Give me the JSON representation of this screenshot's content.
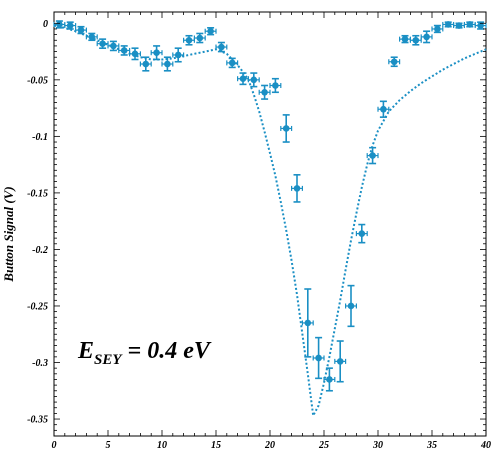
{
  "chart_data": {
    "type": "scatter",
    "ylabel": "Button Signal (V)",
    "xlabel": "",
    "annotation": {
      "main": "E",
      "subscript": "SEY",
      "rest": " = 0.4 eV"
    },
    "xlim": [
      0,
      40
    ],
    "ylim": [
      -0.365,
      0.01
    ],
    "xticks": [
      0,
      5,
      10,
      15,
      20,
      25,
      30,
      35,
      40
    ],
    "yticks": [
      0,
      -0.05,
      -0.1,
      -0.15,
      -0.2,
      -0.25,
      -0.3,
      -0.35
    ],
    "ytick_labels": [
      "0",
      "-0.05",
      "-0.1",
      "-0.15",
      "-0.2",
      "-0.25",
      "-0.3",
      "-0.35"
    ],
    "grid": false,
    "color": "#1a8fc4",
    "series": [
      {
        "kind": "measured",
        "points": [
          {
            "x": 0.5,
            "y": -0.001,
            "xerr": 0.5,
            "yerr": 0.003
          },
          {
            "x": 1.5,
            "y": -0.002,
            "xerr": 0.5,
            "yerr": 0.003
          },
          {
            "x": 2.5,
            "y": -0.006,
            "xerr": 0.5,
            "yerr": 0.003
          },
          {
            "x": 3.5,
            "y": -0.012,
            "xerr": 0.5,
            "yerr": 0.003
          },
          {
            "x": 4.5,
            "y": -0.018,
            "xerr": 0.5,
            "yerr": 0.004
          },
          {
            "x": 5.5,
            "y": -0.02,
            "xerr": 0.5,
            "yerr": 0.004
          },
          {
            "x": 6.5,
            "y": -0.024,
            "xerr": 0.5,
            "yerr": 0.004
          },
          {
            "x": 7.5,
            "y": -0.027,
            "xerr": 0.5,
            "yerr": 0.005
          },
          {
            "x": 8.5,
            "y": -0.036,
            "xerr": 0.5,
            "yerr": 0.006
          },
          {
            "x": 9.5,
            "y": -0.026,
            "xerr": 0.5,
            "yerr": 0.006
          },
          {
            "x": 10.5,
            "y": -0.036,
            "xerr": 0.5,
            "yerr": 0.006
          },
          {
            "x": 11.5,
            "y": -0.028,
            "xerr": 0.5,
            "yerr": 0.006
          },
          {
            "x": 12.5,
            "y": -0.015,
            "xerr": 0.5,
            "yerr": 0.004
          },
          {
            "x": 13.5,
            "y": -0.013,
            "xerr": 0.5,
            "yerr": 0.004
          },
          {
            "x": 14.5,
            "y": -0.007,
            "xerr": 0.5,
            "yerr": 0.003
          },
          {
            "x": 15.5,
            "y": -0.021,
            "xerr": 0.5,
            "yerr": 0.004
          },
          {
            "x": 16.5,
            "y": -0.035,
            "xerr": 0.5,
            "yerr": 0.004
          },
          {
            "x": 17.5,
            "y": -0.049,
            "xerr": 0.5,
            "yerr": 0.005
          },
          {
            "x": 18.5,
            "y": -0.05,
            "xerr": 0.5,
            "yerr": 0.006
          },
          {
            "x": 19.5,
            "y": -0.061,
            "xerr": 0.5,
            "yerr": 0.006
          },
          {
            "x": 20.5,
            "y": -0.055,
            "xerr": 0.5,
            "yerr": 0.006
          },
          {
            "x": 21.5,
            "y": -0.093,
            "xerr": 0.5,
            "yerr": 0.012
          },
          {
            "x": 22.5,
            "y": -0.146,
            "xerr": 0.5,
            "yerr": 0.012
          },
          {
            "x": 23.5,
            "y": -0.265,
            "xerr": 0.5,
            "yerr": 0.03
          },
          {
            "x": 24.5,
            "y": -0.296,
            "xerr": 0.5,
            "yerr": 0.018
          },
          {
            "x": 25.5,
            "y": -0.315,
            "xerr": 0.5,
            "yerr": 0.01
          },
          {
            "x": 26.5,
            "y": -0.299,
            "xerr": 0.5,
            "yerr": 0.018
          },
          {
            "x": 27.5,
            "y": -0.25,
            "xerr": 0.5,
            "yerr": 0.018
          },
          {
            "x": 28.5,
            "y": -0.186,
            "xerr": 0.5,
            "yerr": 0.008
          },
          {
            "x": 29.5,
            "y": -0.117,
            "xerr": 0.5,
            "yerr": 0.007
          },
          {
            "x": 30.5,
            "y": -0.076,
            "xerr": 0.5,
            "yerr": 0.007
          },
          {
            "x": 31.5,
            "y": -0.034,
            "xerr": 0.5,
            "yerr": 0.004
          },
          {
            "x": 32.5,
            "y": -0.014,
            "xerr": 0.5,
            "yerr": 0.003
          },
          {
            "x": 33.5,
            "y": -0.015,
            "xerr": 0.5,
            "yerr": 0.004
          },
          {
            "x": 34.5,
            "y": -0.012,
            "xerr": 0.5,
            "yerr": 0.005
          },
          {
            "x": 35.5,
            "y": -0.005,
            "xerr": 0.5,
            "yerr": 0.003
          },
          {
            "x": 36.5,
            "y": -0.001,
            "xerr": 0.5,
            "yerr": 0.002
          },
          {
            "x": 37.5,
            "y": -0.002,
            "xerr": 0.5,
            "yerr": 0.002
          },
          {
            "x": 38.5,
            "y": -0.001,
            "xerr": 0.5,
            "yerr": 0.002
          },
          {
            "x": 39.5,
            "y": -0.002,
            "xerr": 0.5,
            "yerr": 0.003
          }
        ]
      },
      {
        "kind": "simulated",
        "points": [
          {
            "x": 0,
            "y": -0.002
          },
          {
            "x": 1,
            "y": -0.004
          },
          {
            "x": 2,
            "y": -0.007
          },
          {
            "x": 3,
            "y": -0.011
          },
          {
            "x": 4,
            "y": -0.015
          },
          {
            "x": 5,
            "y": -0.019
          },
          {
            "x": 6,
            "y": -0.023
          },
          {
            "x": 7,
            "y": -0.027
          },
          {
            "x": 8,
            "y": -0.03
          },
          {
            "x": 9,
            "y": -0.032
          },
          {
            "x": 10,
            "y": -0.032
          },
          {
            "x": 11,
            "y": -0.031
          },
          {
            "x": 12,
            "y": -0.029
          },
          {
            "x": 13,
            "y": -0.027
          },
          {
            "x": 14,
            "y": -0.025
          },
          {
            "x": 15,
            "y": -0.023
          },
          {
            "x": 16,
            "y": -0.027
          },
          {
            "x": 17,
            "y": -0.037
          },
          {
            "x": 17.5,
            "y": -0.043
          },
          {
            "x": 18,
            "y": -0.05
          },
          {
            "x": 18.5,
            "y": -0.063
          },
          {
            "x": 19,
            "y": -0.078
          },
          {
            "x": 19.5,
            "y": -0.096
          },
          {
            "x": 20,
            "y": -0.115
          },
          {
            "x": 20.5,
            "y": -0.135
          },
          {
            "x": 21,
            "y": -0.158
          },
          {
            "x": 21.5,
            "y": -0.183
          },
          {
            "x": 22,
            "y": -0.21
          },
          {
            "x": 22.5,
            "y": -0.24
          },
          {
            "x": 23,
            "y": -0.275
          },
          {
            "x": 23.5,
            "y": -0.31
          },
          {
            "x": 24,
            "y": -0.347
          },
          {
            "x": 24.5,
            "y": -0.338
          },
          {
            "x": 25,
            "y": -0.318
          },
          {
            "x": 25.5,
            "y": -0.295
          },
          {
            "x": 26,
            "y": -0.27
          },
          {
            "x": 26.5,
            "y": -0.245
          },
          {
            "x": 27,
            "y": -0.218
          },
          {
            "x": 27.5,
            "y": -0.192
          },
          {
            "x": 28,
            "y": -0.168
          },
          {
            "x": 28.5,
            "y": -0.145
          },
          {
            "x": 29,
            "y": -0.125
          },
          {
            "x": 29.5,
            "y": -0.108
          },
          {
            "x": 30,
            "y": -0.095
          },
          {
            "x": 31,
            "y": -0.078
          },
          {
            "x": 32,
            "y": -0.068
          },
          {
            "x": 33,
            "y": -0.06
          },
          {
            "x": 34,
            "y": -0.053
          },
          {
            "x": 35,
            "y": -0.047
          },
          {
            "x": 36,
            "y": -0.041
          },
          {
            "x": 37,
            "y": -0.036
          },
          {
            "x": 38,
            "y": -0.031
          },
          {
            "x": 39,
            "y": -0.027
          },
          {
            "x": 40,
            "y": -0.023
          }
        ]
      }
    ]
  }
}
